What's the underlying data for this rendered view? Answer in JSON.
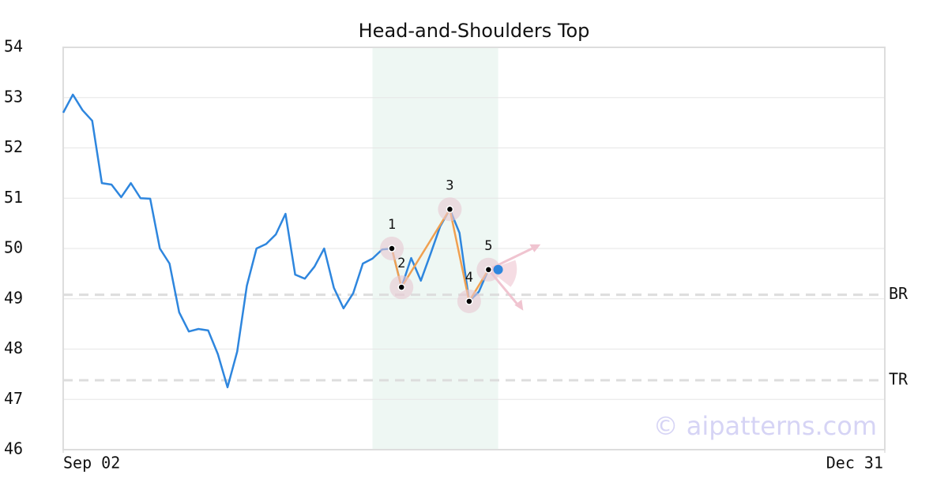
{
  "chart_data": {
    "type": "line",
    "title": "Head-and-Shoulders Top",
    "watermark": "© aipatterns.com",
    "x": [
      0,
      1,
      2,
      3,
      4,
      5,
      6,
      7,
      8,
      9,
      10,
      11,
      12,
      13,
      14,
      15,
      16,
      17,
      18,
      19,
      20,
      21,
      22,
      23,
      24,
      25,
      26,
      27,
      28,
      29,
      30,
      31,
      32,
      33,
      34,
      35,
      36,
      37,
      38,
      39,
      40,
      41,
      42,
      43,
      44,
      45
    ],
    "series": [
      {
        "color": "#2e86de",
        "values": [
          52.7,
          53.06,
          52.75,
          52.54,
          51.3,
          51.27,
          51.02,
          51.3,
          51.0,
          50.99,
          50.0,
          49.7,
          48.73,
          48.35,
          48.4,
          48.37,
          47.9,
          47.24,
          47.95,
          49.26,
          50.0,
          50.09,
          50.28,
          50.69,
          49.48,
          49.4,
          49.64,
          50.0,
          49.22,
          48.81,
          49.11,
          49.7,
          49.8,
          49.98,
          50.0,
          49.23,
          49.81,
          49.36,
          49.89,
          50.44,
          50.78,
          50.31,
          48.95,
          49.14,
          49.58,
          49.58
        ]
      }
    ],
    "pattern_color": "#f0a050",
    "pattern_points": [
      {
        "index": 34,
        "label": "1"
      },
      {
        "index": 35,
        "label": "2"
      },
      {
        "index": 40,
        "label": "3"
      },
      {
        "index": 42,
        "label": "4"
      },
      {
        "index": 44,
        "label": "5"
      }
    ],
    "shaded_range": [
      32,
      45
    ],
    "levels": [
      {
        "label": "BR",
        "value": 49.08
      },
      {
        "label": "TR",
        "value": 47.38
      }
    ],
    "xlim": [
      0,
      85
    ],
    "xticks": [
      {
        "value": 0,
        "label": "Sep 02"
      },
      {
        "value": 85,
        "label": "Dec 31"
      }
    ],
    "ylim": [
      46,
      54
    ],
    "yticks": [
      46,
      47,
      48,
      49,
      50,
      51,
      52,
      53,
      54
    ],
    "grid": true
  }
}
